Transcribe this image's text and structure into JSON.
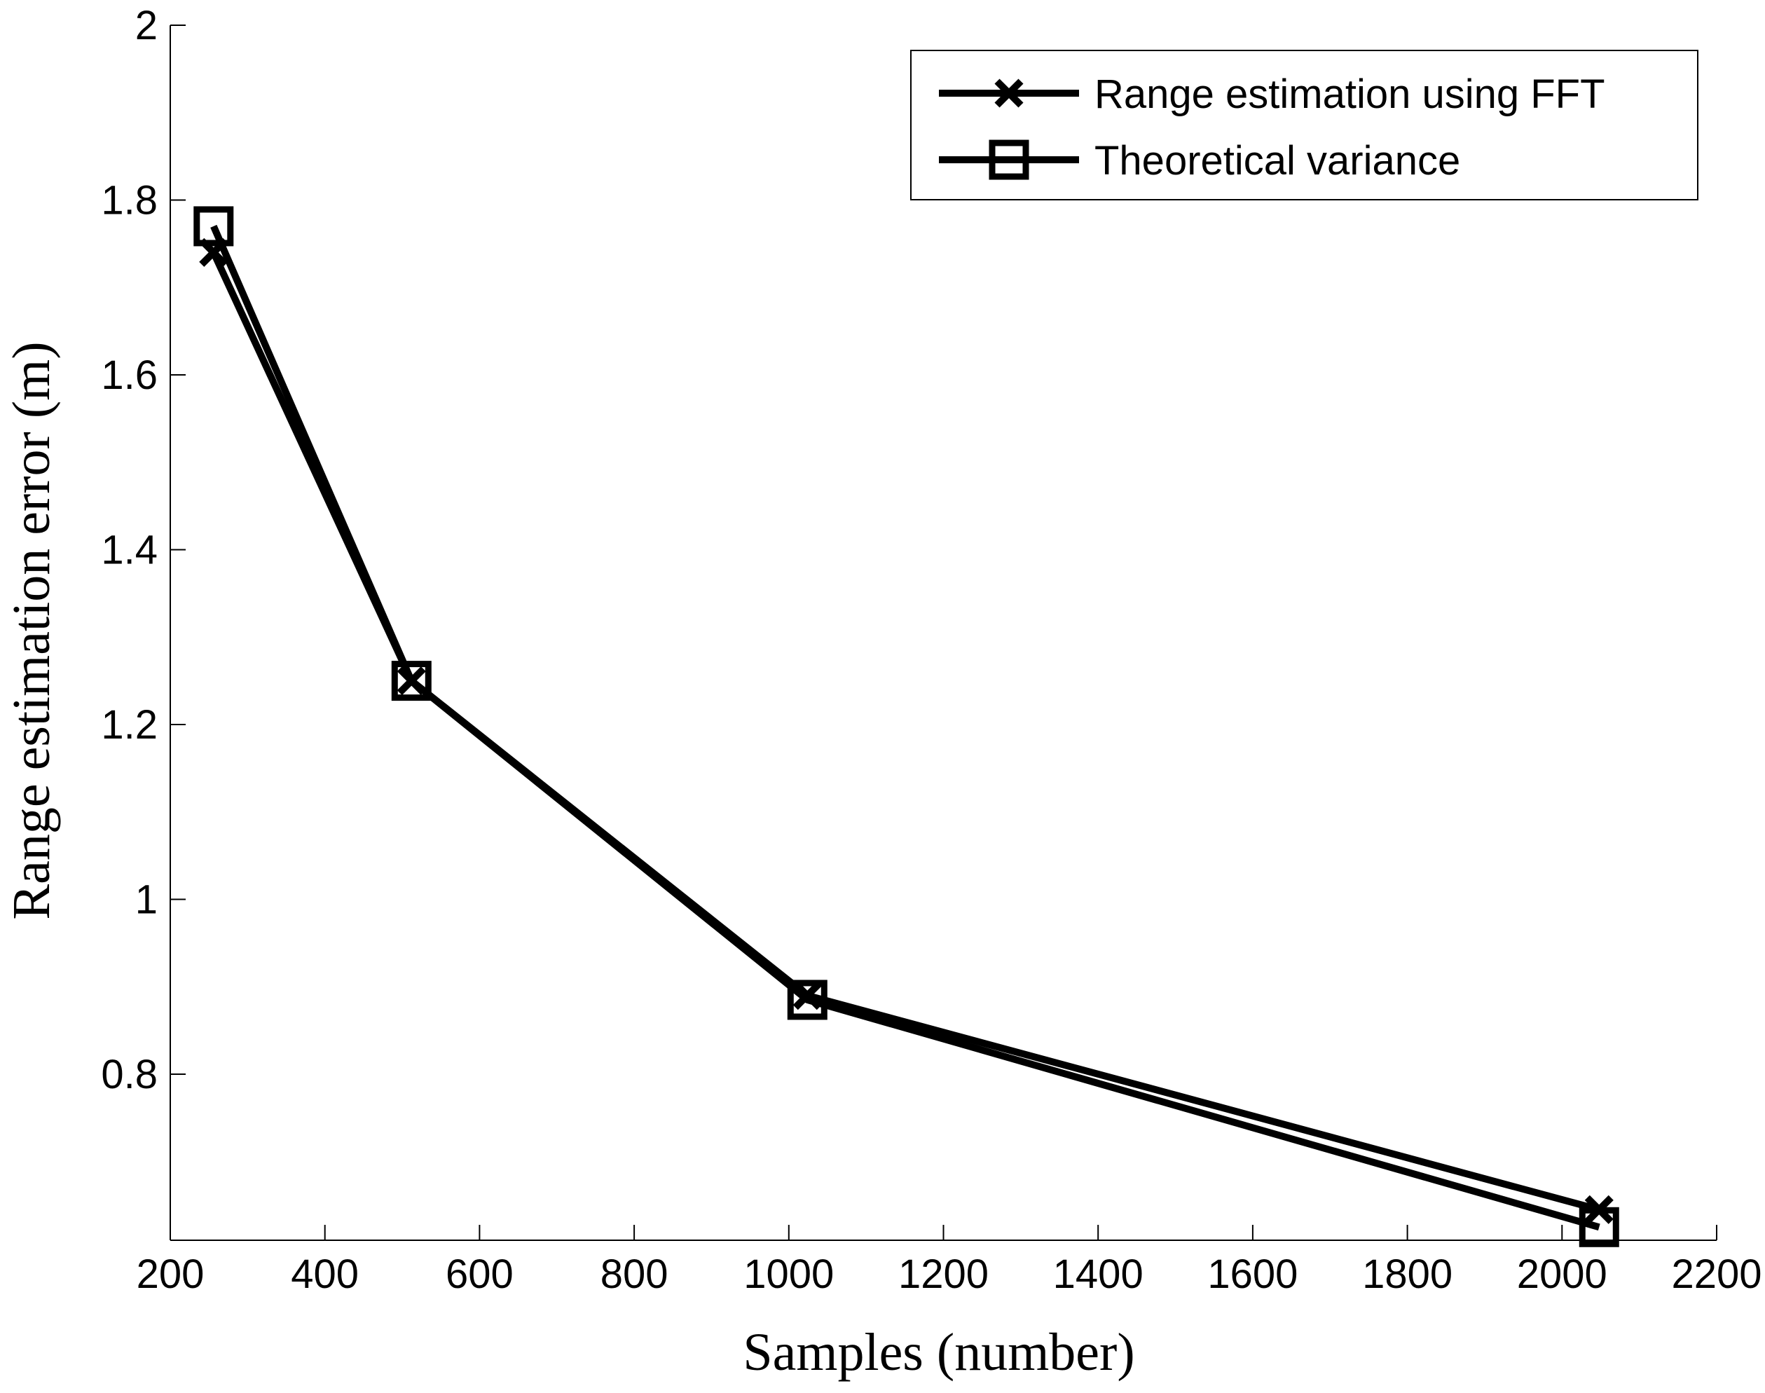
{
  "chart_data": {
    "type": "line",
    "title": "",
    "xlabel": "Samples (number)",
    "ylabel": "Range estimation error (m)",
    "xlim": [
      200,
      2200
    ],
    "ylim": [
      0.61,
      2.0
    ],
    "xticks": [
      200,
      400,
      600,
      800,
      1000,
      1200,
      1400,
      1600,
      1800,
      2000,
      2200
    ],
    "yticks": [
      0.8,
      1.0,
      1.2,
      1.4,
      1.6,
      1.8,
      2.0
    ],
    "ytick_labels": [
      "0.8",
      "1",
      "1.2",
      "1.4",
      "1.6",
      "1.8",
      "2"
    ],
    "grid": false,
    "legend_position": "top-right",
    "x": [
      256,
      512,
      1024,
      2048
    ],
    "series": [
      {
        "name": "Range estimation using FFT",
        "marker": "x",
        "color": "#000000",
        "values": [
          1.74,
          1.25,
          0.89,
          0.645
        ]
      },
      {
        "name": "Theoretical variance",
        "marker": "square",
        "color": "#000000",
        "values": [
          1.77,
          1.25,
          0.885,
          0.625
        ]
      }
    ]
  }
}
